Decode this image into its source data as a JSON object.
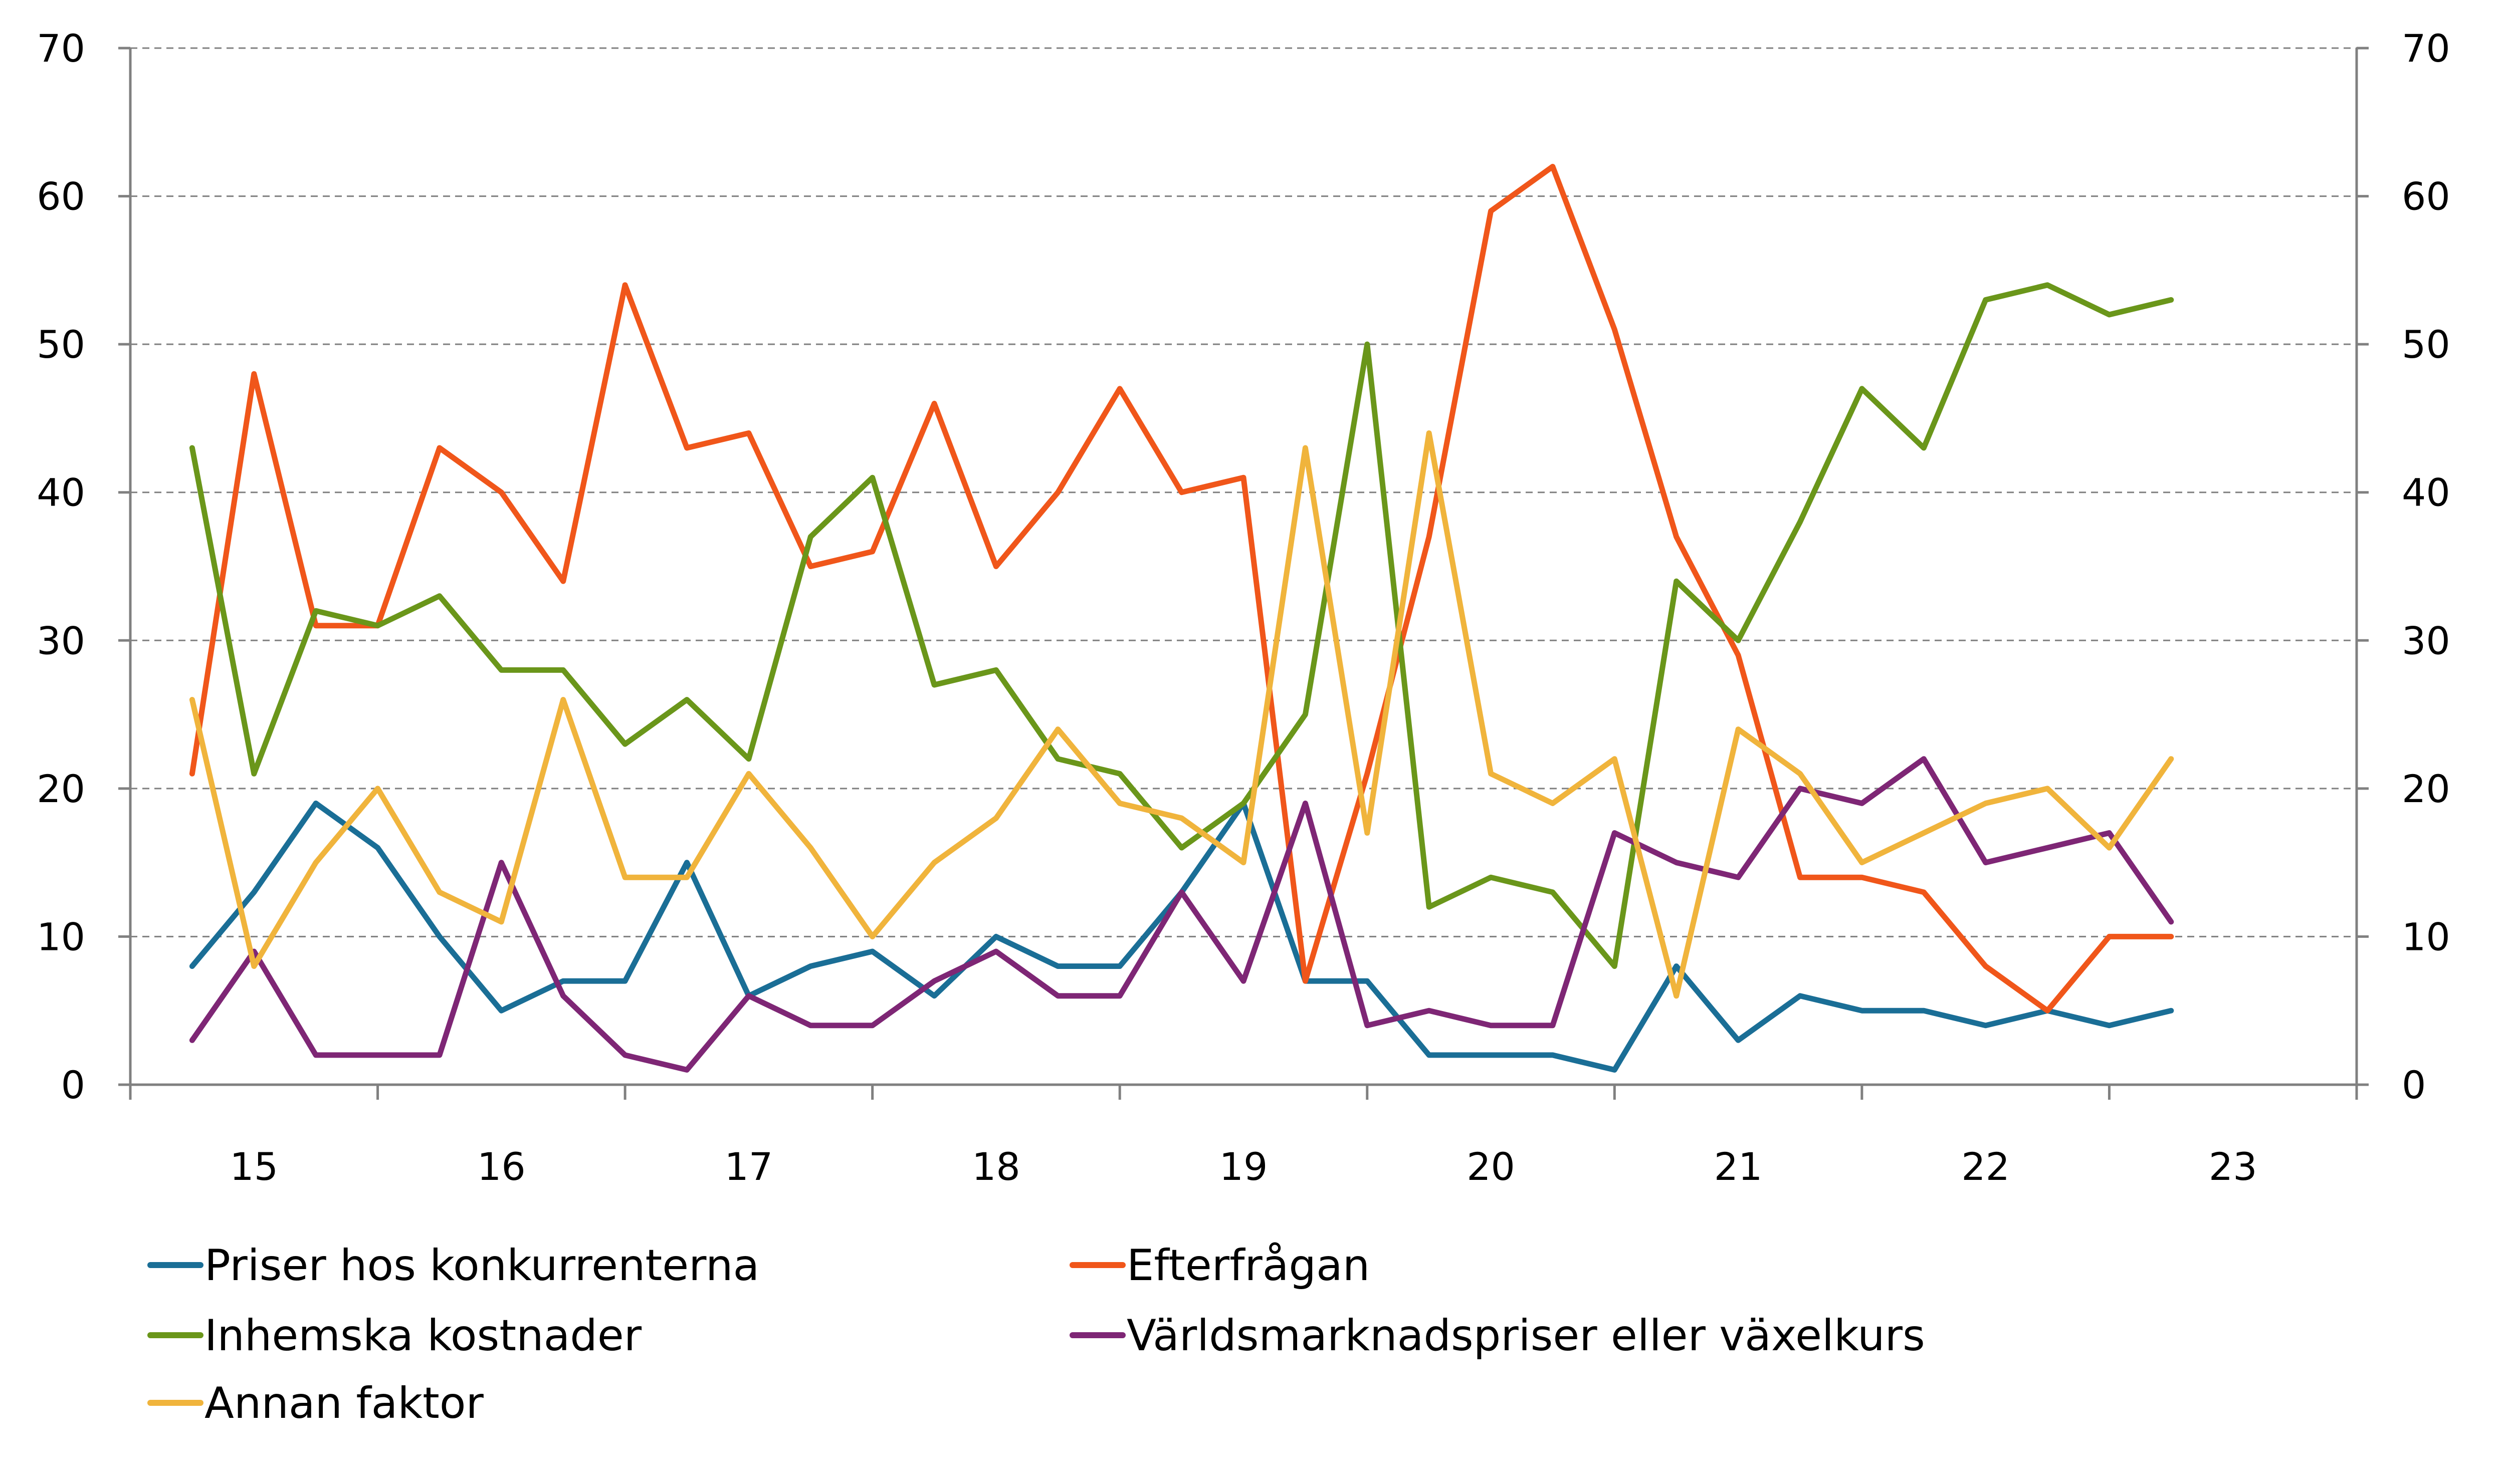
{
  "chart_data": {
    "type": "line",
    "title": "",
    "xlabel": "",
    "ylabel": "",
    "ylim": [
      0,
      70
    ],
    "yticks": [
      0,
      10,
      20,
      30,
      40,
      50,
      60,
      70
    ],
    "y2lim": [
      0,
      70
    ],
    "grid": "horizontal-dashed",
    "legend_position": "bottom",
    "x_tick_labels": [
      "15",
      "16",
      "17",
      "18",
      "19",
      "20",
      "21",
      "22",
      "23"
    ],
    "x_range": [
      2015.0,
      2024.0
    ],
    "x": [
      2015.25,
      2015.5,
      2015.75,
      2016.0,
      2016.25,
      2016.5,
      2016.75,
      2017.0,
      2017.25,
      2017.5,
      2017.75,
      2018.0,
      2018.25,
      2018.5,
      2018.75,
      2019.0,
      2019.25,
      2019.5,
      2019.75,
      2020.0,
      2020.25,
      2020.5,
      2020.75,
      2021.0,
      2021.25,
      2021.5,
      2021.75,
      2022.0,
      2022.25,
      2022.5,
      2022.75,
      2023.0,
      2023.25
    ],
    "series": [
      {
        "name": "Priser hos konkurrenterna",
        "color": "#1a6e96",
        "values": [
          8,
          13,
          19,
          16,
          10,
          5,
          7,
          7,
          15,
          6,
          8,
          9,
          6,
          10,
          8,
          8,
          13,
          19,
          7,
          7,
          2,
          2,
          2,
          1,
          8,
          3,
          6,
          5,
          5,
          4,
          5,
          4,
          5
        ]
      },
      {
        "name": "Efterfrågan",
        "color": "#f0561a",
        "values": [
          21,
          48,
          31,
          31,
          43,
          40,
          34,
          54,
          43,
          44,
          35,
          36,
          46,
          35,
          40,
          47,
          40,
          41,
          7,
          21,
          37,
          59,
          62,
          51,
          37,
          29,
          14,
          14,
          13,
          8,
          5,
          10,
          10
        ]
      },
      {
        "name": "Inhemska kostnader",
        "color": "#6a961a",
        "values": [
          43,
          21,
          32,
          31,
          33,
          28,
          28,
          23,
          26,
          22,
          37,
          41,
          27,
          28,
          22,
          21,
          16,
          19,
          25,
          50,
          12,
          14,
          13,
          8,
          34,
          30,
          38,
          47,
          43,
          53,
          54,
          52,
          53
        ]
      },
      {
        "name": "Världsmarknadspriser eller växelkurs",
        "color": "#7e2675",
        "values": [
          3,
          9,
          2,
          2,
          2,
          15,
          6,
          2,
          1,
          6,
          4,
          4,
          7,
          9,
          6,
          6,
          13,
          7,
          19,
          4,
          5,
          4,
          4,
          17,
          15,
          14,
          20,
          19,
          22,
          15,
          16,
          17,
          11
        ]
      },
      {
        "name": "Annan faktor",
        "color": "#f0b43c",
        "values": [
          26,
          8,
          15,
          20,
          13,
          11,
          26,
          14,
          14,
          21,
          16,
          10,
          15,
          18,
          24,
          19,
          18,
          15,
          43,
          17,
          44,
          21,
          19,
          22,
          6,
          24,
          21,
          15,
          17,
          19,
          20,
          16,
          22
        ]
      }
    ]
  }
}
